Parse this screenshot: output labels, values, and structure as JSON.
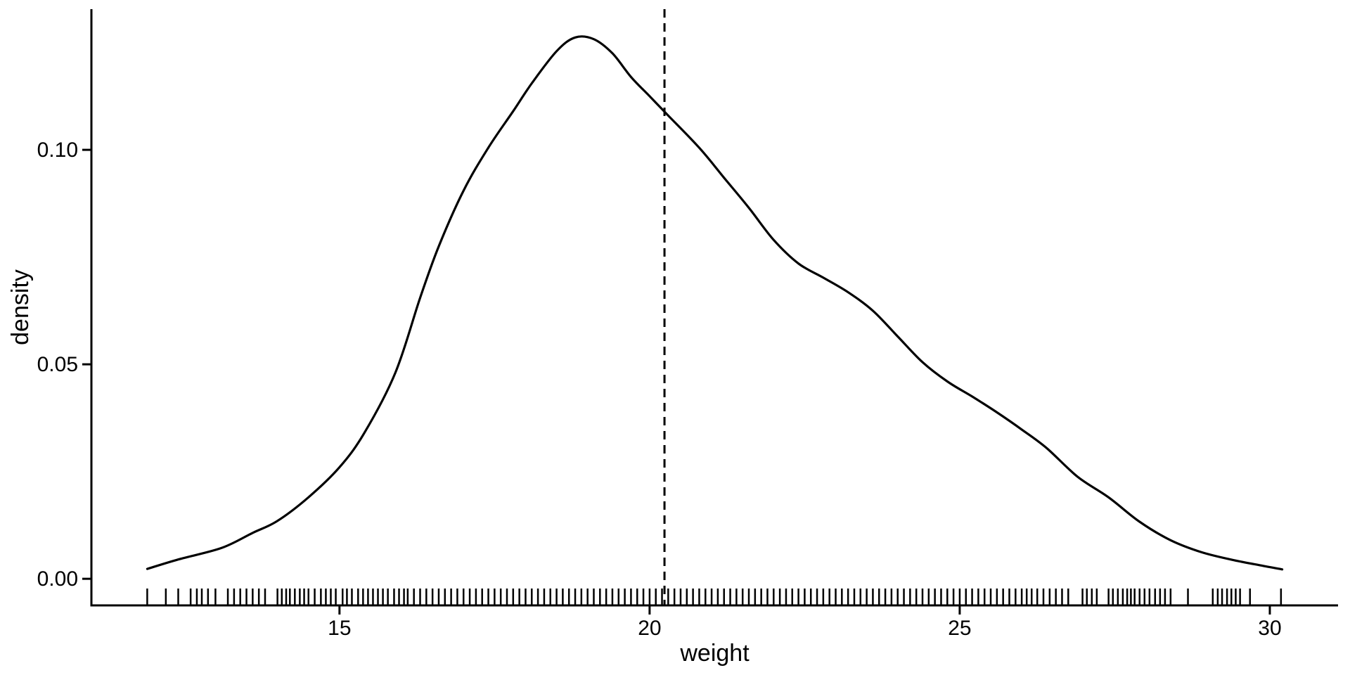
{
  "chart_data": {
    "type": "line",
    "subtype": "kernel-density-with-rug",
    "title": "",
    "xlabel": "weight",
    "ylabel": "density",
    "xlim": [
      11.0,
      31.1
    ],
    "ylim": [
      -0.0062,
      0.1328
    ],
    "grid": false,
    "legend": false,
    "x_ticks": [
      {
        "value": 15,
        "label": "15"
      },
      {
        "value": 20,
        "label": "20"
      },
      {
        "value": 25,
        "label": "25"
      },
      {
        "value": 30,
        "label": "30"
      }
    ],
    "y_ticks": [
      {
        "value": 0.0,
        "label": "0.00"
      },
      {
        "value": 0.05,
        "label": "0.05"
      },
      {
        "value": 0.1,
        "label": "0.10"
      }
    ],
    "series": [
      {
        "name": "density",
        "points": [
          [
            11.9,
            0.0023
          ],
          [
            12.4,
            0.0045
          ],
          [
            13.1,
            0.0072
          ],
          [
            13.6,
            0.0107
          ],
          [
            14.0,
            0.0135
          ],
          [
            14.5,
            0.019
          ],
          [
            15.0,
            0.026
          ],
          [
            15.4,
            0.034
          ],
          [
            15.9,
            0.048
          ],
          [
            16.3,
            0.0655
          ],
          [
            16.6,
            0.0775
          ],
          [
            17.0,
            0.0905
          ],
          [
            17.4,
            0.1005
          ],
          [
            17.8,
            0.109
          ],
          [
            18.1,
            0.1155
          ],
          [
            18.5,
            0.123
          ],
          [
            18.8,
            0.1262
          ],
          [
            19.1,
            0.1258
          ],
          [
            19.4,
            0.1225
          ],
          [
            19.7,
            0.117
          ],
          [
            20.0,
            0.1125
          ],
          [
            20.3,
            0.108
          ],
          [
            20.8,
            0.1005
          ],
          [
            21.2,
            0.0935
          ],
          [
            21.6,
            0.0865
          ],
          [
            22.0,
            0.079
          ],
          [
            22.4,
            0.0735
          ],
          [
            22.8,
            0.0702
          ],
          [
            23.2,
            0.0668
          ],
          [
            23.6,
            0.0625
          ],
          [
            24.0,
            0.0565
          ],
          [
            24.4,
            0.0505
          ],
          [
            24.8,
            0.046
          ],
          [
            25.2,
            0.0425
          ],
          [
            25.6,
            0.0388
          ],
          [
            26.0,
            0.0348
          ],
          [
            26.4,
            0.0305
          ],
          [
            26.9,
            0.0238
          ],
          [
            27.4,
            0.019
          ],
          [
            27.9,
            0.0133
          ],
          [
            28.4,
            0.009
          ],
          [
            28.9,
            0.0062
          ],
          [
            29.4,
            0.0044
          ],
          [
            29.9,
            0.003
          ],
          [
            30.2,
            0.0022
          ]
        ]
      }
    ],
    "vline": {
      "x": 20.24,
      "style": "dashed",
      "color": "#000000"
    },
    "rug_values": [
      11.9,
      12.2,
      12.4,
      12.6,
      12.7,
      12.78,
      12.88,
      13.0,
      13.2,
      13.3,
      13.4,
      13.5,
      13.6,
      13.7,
      13.8,
      14.0,
      14.07,
      14.14,
      14.2,
      14.28,
      14.36,
      14.43,
      14.5,
      14.6,
      14.7,
      14.78,
      14.86,
      14.94,
      15.05,
      15.12,
      15.2,
      15.3,
      15.38,
      15.46,
      15.54,
      15.62,
      15.7,
      15.78,
      15.88,
      15.96,
      16.04,
      16.1,
      16.2,
      16.3,
      16.4,
      16.5,
      16.6,
      16.7,
      16.8,
      16.9,
      17.0,
      17.1,
      17.2,
      17.3,
      17.4,
      17.5,
      17.6,
      17.7,
      17.8,
      17.9,
      18.0,
      18.1,
      18.2,
      18.3,
      18.4,
      18.5,
      18.6,
      18.7,
      18.8,
      18.9,
      19.0,
      19.1,
      19.2,
      19.3,
      19.4,
      19.5,
      19.6,
      19.7,
      19.8,
      19.9,
      20.0,
      20.1,
      20.2,
      20.3,
      20.4,
      20.5,
      20.6,
      20.7,
      20.8,
      20.9,
      21.0,
      21.1,
      21.2,
      21.3,
      21.4,
      21.5,
      21.6,
      21.7,
      21.8,
      21.9,
      22.0,
      22.1,
      22.2,
      22.3,
      22.4,
      22.5,
      22.6,
      22.7,
      22.8,
      22.9,
      23.0,
      23.1,
      23.2,
      23.3,
      23.4,
      23.5,
      23.6,
      23.7,
      23.8,
      23.9,
      24.0,
      24.1,
      24.2,
      24.3,
      24.4,
      24.5,
      24.6,
      24.7,
      24.8,
      24.9,
      25.0,
      25.1,
      25.2,
      25.3,
      25.4,
      25.5,
      25.6,
      25.7,
      25.8,
      25.9,
      26.0,
      26.08,
      26.16,
      26.25,
      26.35,
      26.45,
      26.55,
      26.65,
      26.75,
      26.98,
      27.05,
      27.13,
      27.21,
      27.4,
      27.47,
      27.55,
      27.63,
      27.7,
      27.76,
      27.82,
      27.9,
      27.98,
      28.06,
      28.15,
      28.23,
      28.31,
      28.4,
      28.68,
      29.08,
      29.16,
      29.23,
      29.31,
      29.38,
      29.45,
      29.52,
      29.68,
      30.18
    ],
    "colors": {
      "curve": "#000000",
      "axis": "#000000",
      "text": "#000000",
      "vline": "#000000",
      "rug": "#000000",
      "background": "#ffffff"
    }
  }
}
